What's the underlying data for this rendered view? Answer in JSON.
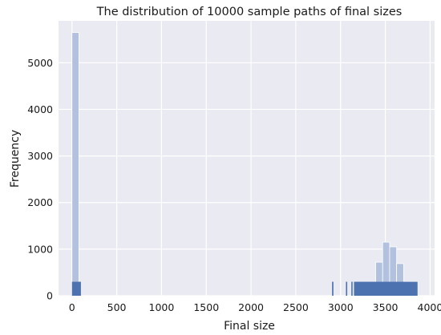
{
  "chart_data": {
    "type": "bar",
    "title": "The distribution of 10000 sample paths of final sizes",
    "xlabel": "Final size",
    "ylabel": "Frequency",
    "xlim": [
      -150,
      4050
    ],
    "ylim": [
      0,
      5900
    ],
    "xticks": [
      0,
      500,
      1000,
      1500,
      2000,
      2500,
      3000,
      3500,
      4000
    ],
    "yticks": [
      0,
      1000,
      2000,
      3000,
      4000,
      5000
    ],
    "grid": true,
    "colors": {
      "background": "#eaeaf2",
      "grid": "#ffffff",
      "histogram": "#b1c1de",
      "rug": "#4c72b0"
    },
    "series": [
      {
        "type": "histogram",
        "bins": [
          {
            "x0": 0,
            "x1": 78,
            "count": 5650
          },
          {
            "x0": 3392,
            "x1": 3470,
            "count": 720
          },
          {
            "x0": 3470,
            "x1": 3548,
            "count": 1150
          },
          {
            "x0": 3548,
            "x1": 3626,
            "count": 1050
          },
          {
            "x0": 3626,
            "x1": 3704,
            "count": 690
          },
          {
            "x0": 3704,
            "x1": 3782,
            "count": 300
          },
          {
            "x0": 3782,
            "x1": 3860,
            "count": 300
          }
        ]
      },
      {
        "type": "rug",
        "height": 300,
        "ranges": [
          [
            0,
            100
          ],
          [
            2905,
            2920
          ],
          [
            3060,
            3070
          ],
          [
            3120,
            3130
          ],
          [
            3150,
            3860
          ]
        ]
      }
    ]
  }
}
